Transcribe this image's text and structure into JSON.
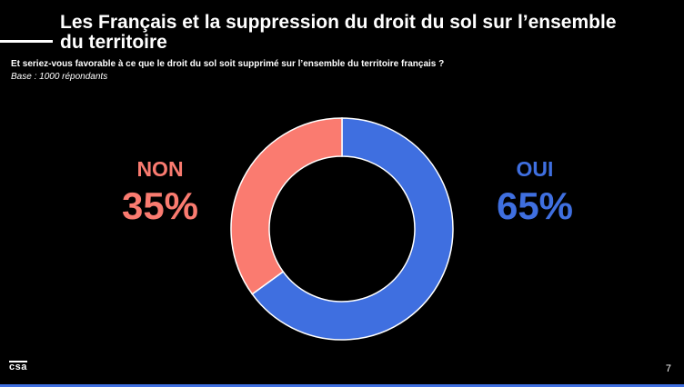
{
  "slide": {
    "title": "Les Français et la suppression du droit du sol sur l’ensemble du territoire",
    "question": "Et seriez-vous favorable à ce que le droit du sol soit supprimé sur l’ensemble du territoire français ?",
    "base": "Base : 1000 répondants",
    "logo_text": "csa",
    "page_number": "7"
  },
  "colors": {
    "oui": "#3f6fe0",
    "non": "#fa7b70",
    "bottom_bar": "#3f6fe0"
  },
  "chart_data": {
    "type": "pie",
    "donut": true,
    "title": "",
    "slices": [
      {
        "label": "OUI",
        "value": 65,
        "display": "65%"
      },
      {
        "label": "NON",
        "value": 35,
        "display": "35%"
      }
    ],
    "start_angle": "12 o'clock",
    "direction": "clockwise",
    "legend": "none"
  }
}
